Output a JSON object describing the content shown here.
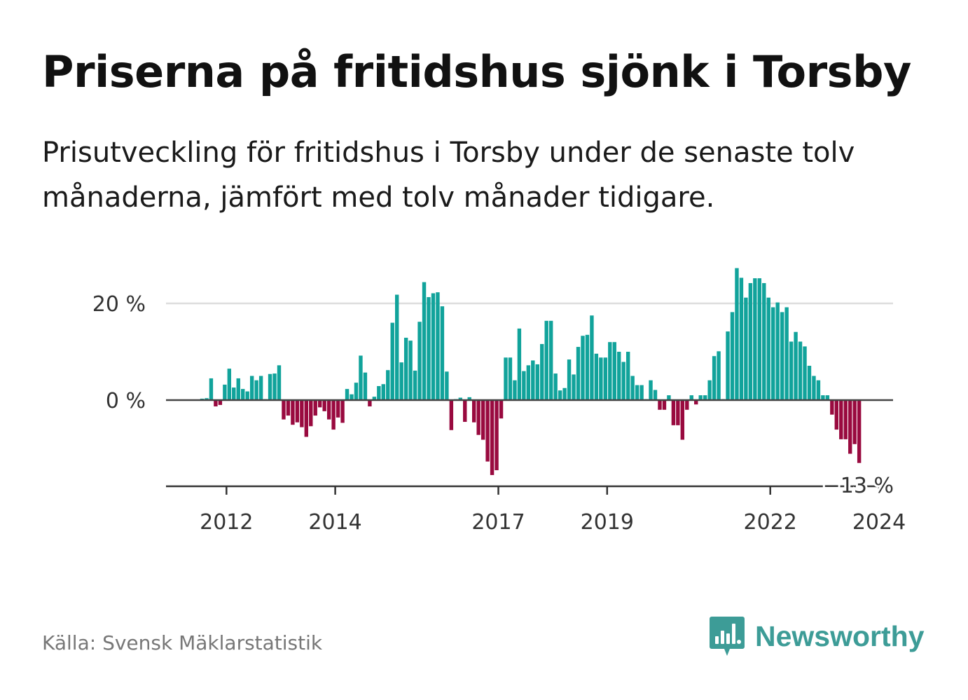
{
  "title": "Priserna på fritidshus sjönk i Torsby",
  "subtitle": "Prisutveckling för fritidshus i Torsby under de senaste tolv månaderna, jämfört med tolv månader tidigare.",
  "source": "Källa: Svensk Mäklarstatistik",
  "brand": {
    "name": "Newsworthy",
    "icon": "newsworthy-logo-icon",
    "color": "#3d9c97"
  },
  "colors": {
    "positive": "#11a39b",
    "negative": "#990a3f",
    "grid": "#dddddd",
    "zero_line": "#444444"
  },
  "chart_data": {
    "type": "bar",
    "title": "Priserna på fritidshus sjönk i Torsby",
    "ylabel": "",
    "xlabel": "",
    "ylim": [
      -17.5,
      28
    ],
    "yticks": [
      {
        "value": 0,
        "label": "0 %"
      },
      {
        "value": 20,
        "label": "20 %"
      }
    ],
    "xticks": [
      {
        "index": 6,
        "label": "2012"
      },
      {
        "index": 30,
        "label": "2014"
      },
      {
        "index": 66,
        "label": "2017"
      },
      {
        "index": 90,
        "label": "2019"
      },
      {
        "index": 126,
        "label": "2022"
      },
      {
        "index": 150,
        "label": "2024"
      }
    ],
    "last_label": "−13 %",
    "values": [
      0.3,
      0.4,
      4.5,
      -1.3,
      -1.0,
      3.2,
      6.5,
      2.6,
      4.5,
      2.3,
      1.8,
      5.0,
      4.1,
      5.0,
      0.2,
      5.4,
      5.5,
      7.2,
      -4.0,
      -3.2,
      -5.1,
      -4.6,
      -5.6,
      -7.6,
      -5.4,
      -3.2,
      -1.5,
      -2.3,
      -4.0,
      -6.1,
      -3.6,
      -4.7,
      2.3,
      1.2,
      3.6,
      9.2,
      5.7,
      -1.3,
      0.7,
      2.9,
      3.3,
      6.2,
      16.0,
      21.8,
      7.8,
      12.9,
      12.3,
      6.1,
      16.2,
      24.4,
      21.3,
      22.1,
      22.3,
      19.4,
      5.9,
      -6.2,
      0.2,
      0.5,
      -4.5,
      0.6,
      -4.6,
      -7.2,
      -8.2,
      -12.7,
      -15.5,
      -14.5,
      -3.8,
      8.8,
      8.8,
      4.1,
      14.8,
      6.0,
      7.2,
      8.2,
      7.4,
      11.6,
      16.4,
      16.4,
      5.5,
      2.0,
      2.5,
      8.4,
      5.3,
      11.0,
      13.3,
      13.5,
      17.5,
      9.6,
      8.8,
      8.8,
      12.0,
      12.0,
      10.0,
      7.9,
      10.0,
      5.0,
      3.1,
      3.1,
      0.2,
      4.1,
      2.1,
      -2.0,
      -2.0,
      1.0,
      -5.2,
      -5.2,
      -8.2,
      -2.0,
      1.0,
      -0.9,
      1.0,
      1.0,
      4.1,
      9.1,
      10.1,
      0.2,
      14.2,
      18.2,
      27.3,
      25.3,
      21.2,
      24.2,
      25.2,
      25.2,
      24.2,
      21.2,
      19.2,
      20.2,
      18.2,
      19.2,
      12.1,
      14.1,
      12.1,
      11.1,
      7.1,
      5.0,
      4.1,
      1.0,
      1.0,
      -3.0,
      -6.1,
      -8.1,
      -8.1,
      -11.1,
      -9.1,
      -13.0
    ]
  }
}
